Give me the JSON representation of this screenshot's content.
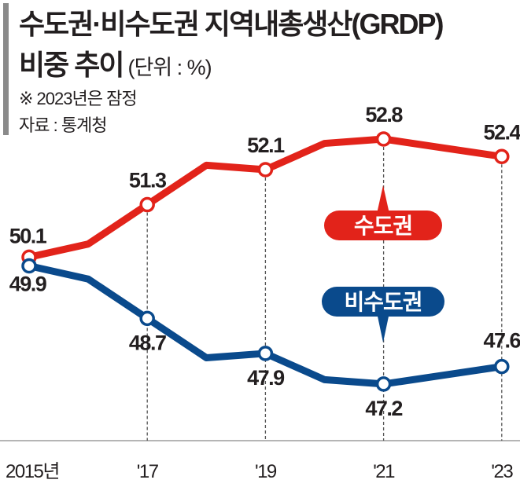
{
  "header": {
    "title_line1": "수도권·비수도권 지역내총생산(GRDP)",
    "title_line2": "비중 추이",
    "unit": "(단위 : %)",
    "note": "※ 2023년은 잠정",
    "source": "자료 : 통계청"
  },
  "chart_data": {
    "type": "line",
    "title": "수도권·비수도권 지역내총생산(GRDP) 비중 추이",
    "unit": "%",
    "x": [
      2015,
      2016,
      2017,
      2018,
      2019,
      2020,
      2021,
      2022,
      2023
    ],
    "tick_labels": [
      "2015년",
      "'17",
      "'19",
      "'21",
      "'23"
    ],
    "tick_years": [
      2015,
      2017,
      2019,
      2021,
      2023
    ],
    "ylim": [
      46.5,
      53.5
    ],
    "grid": "dashed vertical lines at labeled years",
    "series": [
      {
        "name": "수도권",
        "color": "#e2231a",
        "values": [
          50.1,
          50.4,
          51.3,
          52.2,
          52.1,
          52.7,
          52.8,
          52.6,
          52.4
        ],
        "labeled": [
          50.1,
          51.3,
          52.1,
          52.8,
          52.4
        ]
      },
      {
        "name": "비수도권",
        "color": "#0a4a8c",
        "values": [
          49.9,
          49.6,
          48.7,
          47.8,
          47.9,
          47.3,
          47.2,
          47.4,
          47.6
        ],
        "labeled": [
          49.9,
          48.7,
          47.9,
          47.2,
          47.6
        ]
      }
    ]
  }
}
